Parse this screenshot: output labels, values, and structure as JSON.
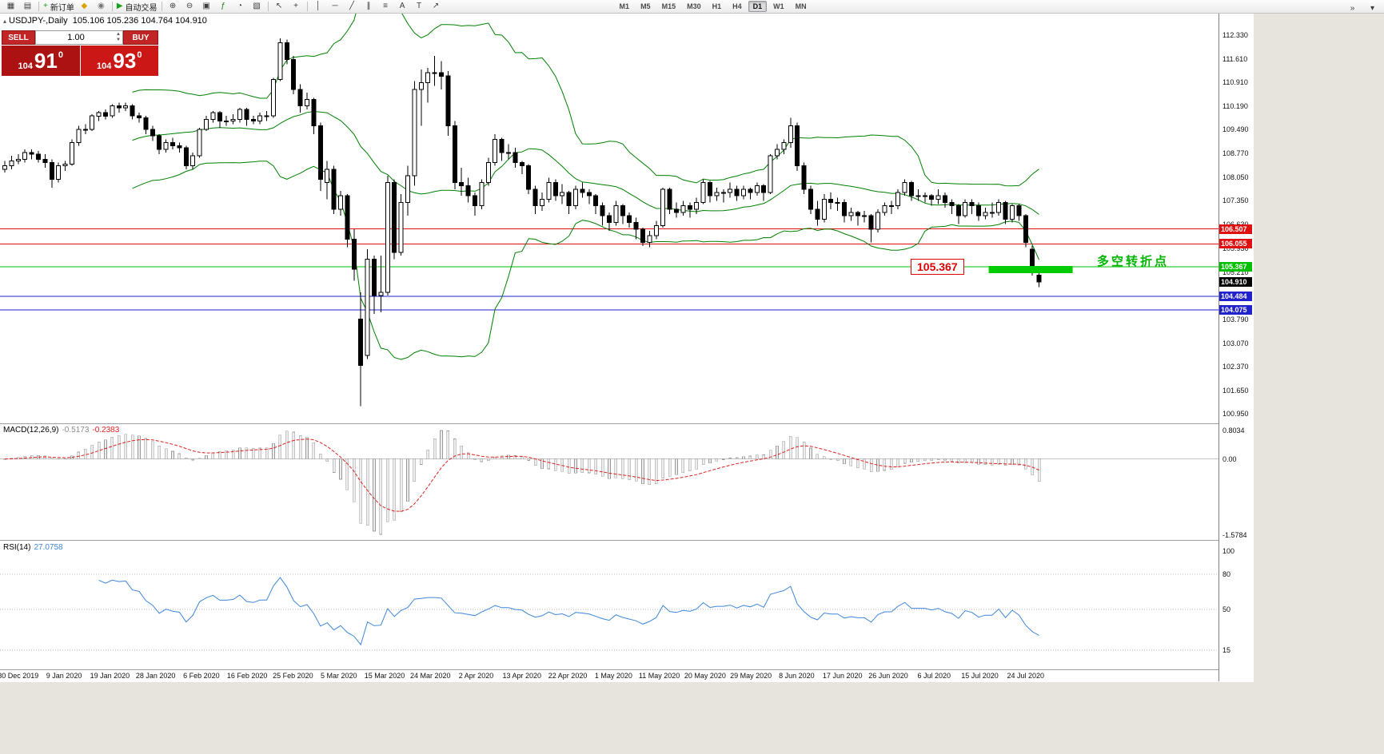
{
  "toolbar": {
    "items": [
      {
        "name": "new-chart-icon",
        "glyph": "▦"
      },
      {
        "name": "chart-profiles-icon",
        "glyph": "▤"
      },
      {
        "sep": true
      },
      {
        "name": "new-order-button",
        "glyph": "+",
        "glyph_color": "#18a018",
        "label": "新订单"
      },
      {
        "name": "metaeditor-icon",
        "glyph": "◆",
        "glyph_color": "#d8a400"
      },
      {
        "name": "market-icon",
        "glyph": "◉",
        "glyph_color": "#777777"
      },
      {
        "sep": true
      },
      {
        "name": "autotrading-button",
        "glyph": "▶",
        "glyph_color": "#18a018",
        "label": "自动交易"
      },
      {
        "sep": true
      },
      {
        "name": "zoom-in-icon",
        "glyph": "⊕"
      },
      {
        "name": "zoom-out-icon",
        "glyph": "⊖"
      },
      {
        "name": "tile-windows-icon",
        "glyph": "▣"
      },
      {
        "name": "indicators-icon",
        "glyph": "ƒ",
        "glyph_color": "#187818"
      },
      {
        "name": "periods-icon",
        "glyph": "◔"
      },
      {
        "name": "templates-icon",
        "glyph": "▧"
      },
      {
        "sep": true
      },
      {
        "name": "cursor-icon",
        "glyph": "↖"
      },
      {
        "name": "crosshair-icon",
        "glyph": "+"
      },
      {
        "sep": true
      },
      {
        "name": "vertical-line-icon",
        "glyph": "│"
      },
      {
        "name": "horizontal-line-icon",
        "glyph": "─"
      },
      {
        "name": "trendline-icon",
        "glyph": "╱"
      },
      {
        "name": "channel-icon",
        "glyph": "∥"
      },
      {
        "name": "fibonacci-icon",
        "glyph": "≡"
      },
      {
        "name": "text-icon",
        "glyph": "A"
      },
      {
        "name": "label-icon",
        "glyph": "T"
      },
      {
        "name": "arrows-icon",
        "glyph": "↗"
      }
    ],
    "timeframes": [
      "M1",
      "M5",
      "M15",
      "M30",
      "H1",
      "H4",
      "D1",
      "W1",
      "MN"
    ],
    "active_timeframe": "D1",
    "overflow_icons": [
      {
        "name": "toolbar-more-icon",
        "glyph": "»"
      },
      {
        "name": "toolbar-menu-icon",
        "glyph": "▾"
      }
    ]
  },
  "chart": {
    "title_symbol": "USDJPY-,Daily",
    "title_ohlc": "105.106 105.236 104.764 104.910",
    "trade_panel": {
      "sell_label": "SELL",
      "buy_label": "BUY",
      "lot": "1.00",
      "sell_price": {
        "small": "104",
        "big": "91",
        "sup": "0"
      },
      "buy_price": {
        "small": "104",
        "big": "93",
        "sup": "0"
      }
    },
    "annotations": {
      "price_label": "105.367",
      "note": "多空转折点",
      "note_color": "#00b400"
    }
  },
  "price_axis": {
    "labels": [
      "112.330",
      "111.610",
      "110.910",
      "110.190",
      "109.490",
      "108.770",
      "108.050",
      "107.350",
      "106.630",
      "105.930",
      "105.210",
      "104.510",
      "103.790",
      "103.070",
      "102.370",
      "101.650",
      "100.950"
    ],
    "markers": [
      {
        "value": "106.507",
        "bg": "#e01010"
      },
      {
        "value": "106.055",
        "bg": "#e01010"
      },
      {
        "value": "105.367",
        "bg": "#00c000"
      },
      {
        "value": "104.910",
        "bg": "#000000"
      },
      {
        "value": "104.484",
        "bg": "#2222cc"
      },
      {
        "value": "104.075",
        "bg": "#2222cc"
      }
    ]
  },
  "macd_panel": {
    "label": "MACD(12,26,9)",
    "value_main": "-0.5173",
    "value_signal": "-0.2383",
    "axis": [
      "0.8034",
      "0.00",
      "-1.5784"
    ]
  },
  "rsi_panel": {
    "label": "RSI(14)",
    "value": "27.0758",
    "axis": [
      "100",
      "80",
      "50",
      "15"
    ],
    "levels": [
      80,
      50,
      15
    ]
  },
  "chart_data": {
    "type": "candlestick",
    "symbol": "USDJPY-",
    "period": "Daily",
    "ohlc_current": {
      "open": 105.106,
      "high": 105.236,
      "low": 104.764,
      "close": 104.91
    },
    "y_ticks": [
      112.33,
      111.61,
      110.91,
      110.19,
      109.49,
      108.77,
      108.05,
      107.35,
      106.63,
      105.93,
      105.21,
      104.51,
      103.79,
      103.07,
      102.37,
      101.65,
      100.95
    ],
    "x_labels": [
      "30 Dec 2019",
      "9 Jan 2020",
      "19 Jan 2020",
      "28 Jan 2020",
      "6 Feb 2020",
      "16 Feb 2020",
      "25 Feb 2020",
      "5 Mar 2020",
      "15 Mar 2020",
      "24 Mar 2020",
      "2 Apr 2020",
      "13 Apr 2020",
      "22 Apr 2020",
      "1 May 2020",
      "11 May 2020",
      "20 May 2020",
      "29 May 2020",
      "8 Jun 2020",
      "17 Jun 2020",
      "26 Jun 2020",
      "6 Jul 2020",
      "15 Jul 2020",
      "24 Jul 2020"
    ],
    "hlines": [
      {
        "price": 106.507,
        "color": "#e01010"
      },
      {
        "price": 106.055,
        "color": "#e01010"
      },
      {
        "price": 105.367,
        "color": "#00c000"
      },
      {
        "price": 104.484,
        "color": "#2222cc"
      },
      {
        "price": 104.075,
        "color": "#2222cc"
      }
    ],
    "support_zone": {
      "price": 105.367,
      "start_index": 146.5,
      "end_index": 159,
      "color": "#00cc00"
    },
    "indicators": {
      "bollinger": {
        "period": 20,
        "deviation": 2,
        "color": "#008000"
      },
      "macd": {
        "fast": 12,
        "slow": 26,
        "signal": 9,
        "main": -0.5173,
        "signal_value": -0.2383,
        "histogram_fill": "#ededed",
        "histogram_stroke": "#9a9a9a",
        "signal_color": "#e02020"
      },
      "rsi": {
        "period": 14,
        "value": 27.0758,
        "color": "#3e86d8"
      }
    },
    "candles": [
      [
        108.3,
        108.55,
        108.2,
        108.4
      ],
      [
        108.4,
        108.7,
        108.3,
        108.55
      ],
      [
        108.55,
        108.75,
        108.45,
        108.6
      ],
      [
        108.6,
        108.9,
        108.5,
        108.8
      ],
      [
        108.8,
        108.9,
        108.6,
        108.75
      ],
      [
        108.75,
        108.85,
        108.5,
        108.6
      ],
      [
        108.6,
        108.75,
        108.35,
        108.5
      ],
      [
        108.5,
        108.6,
        107.75,
        108.0
      ],
      [
        108.0,
        108.5,
        107.9,
        108.4
      ],
      [
        108.4,
        108.55,
        108.25,
        108.45
      ],
      [
        108.45,
        109.2,
        108.4,
        109.1
      ],
      [
        109.1,
        109.6,
        109.0,
        109.5
      ],
      [
        109.5,
        109.65,
        109.35,
        109.5
      ],
      [
        109.5,
        109.95,
        109.45,
        109.9
      ],
      [
        109.9,
        110.05,
        109.75,
        110.0
      ],
      [
        110.0,
        110.1,
        109.8,
        109.9
      ],
      [
        109.9,
        110.25,
        109.85,
        110.2
      ],
      [
        110.2,
        110.3,
        110.0,
        110.15
      ],
      [
        110.15,
        110.3,
        110.05,
        110.2
      ],
      [
        110.2,
        110.25,
        109.8,
        109.9
      ],
      [
        109.9,
        110.0,
        109.7,
        109.85
      ],
      [
        109.85,
        109.9,
        109.35,
        109.5
      ],
      [
        109.5,
        109.6,
        109.15,
        109.3
      ],
      [
        109.3,
        109.35,
        108.75,
        108.9
      ],
      [
        108.9,
        109.2,
        108.8,
        109.1
      ],
      [
        109.1,
        109.25,
        108.9,
        109.0
      ],
      [
        109.0,
        109.1,
        108.8,
        108.95
      ],
      [
        108.95,
        109.0,
        108.3,
        108.4
      ],
      [
        108.4,
        108.8,
        108.3,
        108.7
      ],
      [
        108.7,
        109.55,
        108.65,
        109.5
      ],
      [
        109.5,
        109.9,
        109.45,
        109.8
      ],
      [
        109.8,
        110.05,
        109.7,
        110.0
      ],
      [
        110.0,
        110.05,
        109.55,
        109.75
      ],
      [
        109.75,
        109.9,
        109.6,
        109.75
      ],
      [
        109.75,
        109.95,
        109.65,
        109.8
      ],
      [
        109.8,
        110.15,
        109.7,
        110.1
      ],
      [
        110.1,
        110.15,
        109.6,
        109.8
      ],
      [
        109.8,
        109.9,
        109.65,
        109.75
      ],
      [
        109.75,
        110.0,
        109.65,
        109.9
      ],
      [
        109.9,
        110.05,
        109.75,
        109.9
      ],
      [
        109.9,
        111.05,
        109.85,
        111.0
      ],
      [
        111.0,
        112.23,
        110.95,
        112.1
      ],
      [
        112.1,
        112.2,
        111.45,
        111.6
      ],
      [
        111.6,
        111.7,
        110.55,
        110.7
      ],
      [
        110.7,
        110.85,
        110.0,
        110.2
      ],
      [
        110.2,
        110.6,
        110.1,
        110.4
      ],
      [
        110.4,
        110.45,
        109.35,
        109.6
      ],
      [
        109.6,
        109.7,
        107.65,
        108.0
      ],
      [
        107.9,
        108.55,
        107.4,
        108.3
      ],
      [
        108.3,
        108.4,
        106.95,
        107.1
      ],
      [
        107.1,
        107.65,
        106.9,
        107.5
      ],
      [
        107.5,
        107.55,
        105.95,
        106.2
      ],
      [
        106.2,
        106.5,
        104.95,
        105.3
      ],
      [
        103.8,
        104.6,
        101.18,
        102.4
      ],
      [
        102.7,
        105.9,
        102.6,
        105.6
      ],
      [
        105.6,
        105.7,
        103.95,
        104.5
      ],
      [
        104.5,
        105.7,
        104.0,
        104.6
      ],
      [
        104.6,
        108.1,
        104.5,
        107.9
      ],
      [
        107.9,
        108.0,
        105.6,
        105.8
      ],
      [
        105.8,
        107.55,
        105.7,
        107.3
      ],
      [
        107.3,
        108.4,
        106.9,
        108.1
      ],
      [
        108.1,
        110.95,
        107.8,
        110.7
      ],
      [
        110.7,
        111.3,
        109.6,
        110.9
      ],
      [
        110.9,
        111.35,
        110.3,
        111.2
      ],
      [
        111.2,
        111.7,
        110.8,
        111.2
      ],
      [
        111.2,
        111.55,
        110.7,
        111.1
      ],
      [
        111.1,
        111.25,
        109.3,
        109.6
      ],
      [
        109.6,
        109.75,
        107.7,
        107.9
      ],
      [
        107.9,
        108.35,
        107.5,
        107.8
      ],
      [
        107.8,
        108.05,
        107.3,
        107.5
      ],
      [
        107.5,
        107.6,
        106.9,
        107.2
      ],
      [
        107.2,
        108.0,
        107.1,
        107.9
      ],
      [
        107.9,
        108.65,
        107.8,
        108.5
      ],
      [
        108.5,
        109.35,
        108.4,
        109.2
      ],
      [
        109.2,
        109.25,
        108.55,
        108.8
      ],
      [
        108.8,
        109.05,
        108.6,
        108.8
      ],
      [
        108.8,
        108.95,
        108.35,
        108.5
      ],
      [
        108.5,
        108.55,
        108.15,
        108.4
      ],
      [
        108.4,
        108.45,
        107.55,
        107.7
      ],
      [
        107.7,
        107.8,
        106.95,
        107.2
      ],
      [
        107.2,
        107.6,
        107.05,
        107.4
      ],
      [
        107.4,
        108.05,
        107.3,
        107.9
      ],
      [
        107.9,
        108.0,
        107.35,
        107.5
      ],
      [
        107.5,
        107.85,
        107.25,
        107.6
      ],
      [
        107.6,
        107.65,
        106.95,
        107.2
      ],
      [
        107.2,
        107.8,
        107.1,
        107.7
      ],
      [
        107.7,
        107.9,
        107.45,
        107.6
      ],
      [
        107.6,
        107.7,
        107.25,
        107.5
      ],
      [
        107.5,
        107.55,
        106.95,
        107.2
      ],
      [
        107.2,
        107.3,
        106.6,
        106.9
      ],
      [
        106.9,
        107.0,
        106.45,
        106.7
      ],
      [
        106.7,
        107.35,
        106.6,
        107.2
      ],
      [
        107.2,
        107.25,
        106.65,
        106.9
      ],
      [
        106.9,
        107.0,
        106.55,
        106.7
      ],
      [
        106.7,
        106.85,
        106.2,
        106.5
      ],
      [
        106.5,
        106.55,
        105.99,
        106.1
      ],
      [
        106.1,
        106.45,
        105.95,
        106.3
      ],
      [
        106.3,
        106.75,
        106.2,
        106.6
      ],
      [
        106.6,
        107.75,
        106.55,
        107.7
      ],
      [
        107.7,
        107.75,
        106.95,
        107.1
      ],
      [
        107.1,
        107.3,
        106.85,
        107.0
      ],
      [
        107.0,
        107.35,
        106.9,
        107.2
      ],
      [
        107.2,
        107.3,
        106.85,
        107.1
      ],
      [
        107.1,
        107.45,
        106.95,
        107.3
      ],
      [
        107.3,
        108.0,
        107.25,
        107.9
      ],
      [
        107.9,
        107.95,
        107.3,
        107.5
      ],
      [
        107.5,
        107.75,
        107.35,
        107.6
      ],
      [
        107.6,
        107.7,
        107.3,
        107.6
      ],
      [
        107.6,
        107.9,
        107.45,
        107.7
      ],
      [
        107.7,
        107.8,
        107.35,
        107.5
      ],
      [
        107.5,
        107.8,
        107.4,
        107.7
      ],
      [
        107.7,
        107.75,
        107.4,
        107.6
      ],
      [
        107.6,
        107.9,
        107.5,
        107.8
      ],
      [
        107.8,
        107.85,
        107.35,
        107.6
      ],
      [
        107.6,
        108.75,
        107.55,
        108.7
      ],
      [
        108.7,
        109.05,
        108.6,
        108.9
      ],
      [
        108.9,
        109.2,
        108.75,
        109.1
      ],
      [
        109.1,
        109.85,
        108.95,
        109.6
      ],
      [
        109.6,
        109.7,
        108.25,
        108.4
      ],
      [
        108.4,
        108.5,
        107.55,
        107.7
      ],
      [
        107.7,
        107.8,
        106.95,
        107.1
      ],
      [
        107.1,
        107.35,
        106.6,
        106.8
      ],
      [
        106.8,
        107.55,
        106.7,
        107.4
      ],
      [
        107.4,
        107.6,
        107.1,
        107.3
      ],
      [
        107.3,
        107.45,
        107.05,
        107.3
      ],
      [
        107.3,
        107.4,
        106.7,
        106.9
      ],
      [
        106.9,
        107.15,
        106.75,
        107.0
      ],
      [
        107.0,
        107.05,
        106.6,
        106.9
      ],
      [
        106.9,
        107.05,
        106.7,
        106.9
      ],
      [
        106.9,
        106.95,
        106.1,
        106.5
      ],
      [
        106.5,
        107.1,
        106.4,
        107.0
      ],
      [
        107.0,
        107.3,
        106.9,
        107.2
      ],
      [
        107.2,
        107.35,
        106.95,
        107.2
      ],
      [
        107.2,
        107.7,
        107.1,
        107.6
      ],
      [
        107.6,
        108.0,
        107.5,
        107.9
      ],
      [
        107.9,
        107.95,
        107.35,
        107.5
      ],
      [
        107.5,
        107.7,
        107.35,
        107.5
      ],
      [
        107.5,
        107.6,
        107.3,
        107.5
      ],
      [
        107.5,
        107.55,
        107.2,
        107.4
      ],
      [
        107.4,
        107.7,
        107.25,
        107.5
      ],
      [
        107.5,
        107.6,
        107.15,
        107.3
      ],
      [
        107.3,
        107.4,
        106.95,
        107.2
      ],
      [
        107.2,
        107.25,
        106.65,
        106.9
      ],
      [
        106.9,
        107.4,
        106.85,
        107.3
      ],
      [
        107.3,
        107.4,
        106.95,
        107.2
      ],
      [
        107.2,
        107.3,
        106.75,
        106.9
      ],
      [
        106.9,
        107.15,
        106.8,
        107.0
      ],
      [
        107.0,
        107.3,
        106.85,
        107.0
      ],
      [
        107.0,
        107.4,
        106.9,
        107.3
      ],
      [
        107.3,
        107.35,
        106.65,
        106.8
      ],
      [
        106.8,
        107.25,
        106.7,
        107.2
      ],
      [
        107.2,
        107.25,
        106.75,
        106.9
      ],
      [
        106.9,
        106.95,
        105.95,
        106.1
      ],
      [
        105.9,
        106.0,
        105.1,
        105.4
      ],
      [
        105.11,
        105.24,
        104.76,
        104.91
      ]
    ]
  }
}
